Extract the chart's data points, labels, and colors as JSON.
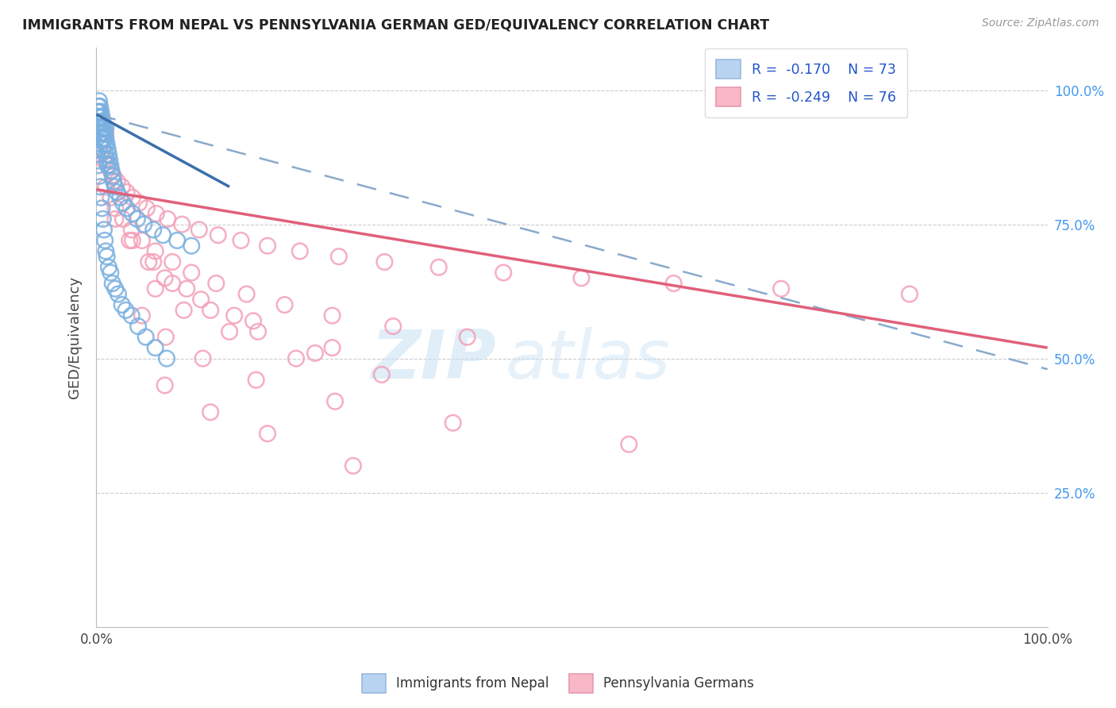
{
  "title": "IMMIGRANTS FROM NEPAL VS PENNSYLVANIA GERMAN GED/EQUIVALENCY CORRELATION CHART",
  "source": "Source: ZipAtlas.com",
  "ylabel": "GED/Equivalency",
  "legend_bottom": [
    "Immigrants from Nepal",
    "Pennsylvania Germans"
  ],
  "blue_color": "#7ab0e0",
  "pink_color": "#f4a0b8",
  "blue_line_color": "#3a6faa",
  "pink_line_color": "#e0607a",
  "dashed_line_color": "#88aacc",
  "blue_line_x0": 0.0,
  "blue_line_x1": 0.14,
  "blue_line_y0": 0.955,
  "blue_line_y1": 0.82,
  "dashed_line_x0": 0.0,
  "dashed_line_x1": 1.0,
  "dashed_line_y0": 0.955,
  "dashed_line_y1": 0.48,
  "pink_line_x0": 0.0,
  "pink_line_x1": 1.0,
  "pink_line_y0": 0.815,
  "pink_line_y1": 0.52,
  "xlim": [
    0.0,
    1.0
  ],
  "ylim": [
    0.0,
    1.08
  ],
  "ytick_values": [
    0.25,
    0.5,
    0.75,
    1.0
  ],
  "ytick_labels_right": [
    "25.0%",
    "50.0%",
    "75.0%",
    "100.0%"
  ],
  "xtick_values": [
    0.0,
    1.0
  ],
  "xtick_labels": [
    "0.0%",
    "100.0%"
  ],
  "nepal_x": [
    0.001,
    0.001,
    0.002,
    0.002,
    0.002,
    0.003,
    0.003,
    0.003,
    0.004,
    0.004,
    0.004,
    0.005,
    0.005,
    0.005,
    0.005,
    0.006,
    0.006,
    0.006,
    0.007,
    0.007,
    0.007,
    0.008,
    0.008,
    0.009,
    0.009,
    0.01,
    0.01,
    0.01,
    0.011,
    0.011,
    0.012,
    0.012,
    0.013,
    0.014,
    0.015,
    0.016,
    0.017,
    0.018,
    0.02,
    0.022,
    0.025,
    0.028,
    0.032,
    0.038,
    0.043,
    0.05,
    0.06,
    0.07,
    0.085,
    0.1,
    0.001,
    0.002,
    0.003,
    0.004,
    0.005,
    0.006,
    0.007,
    0.008,
    0.009,
    0.01,
    0.011,
    0.013,
    0.015,
    0.017,
    0.02,
    0.023,
    0.027,
    0.031,
    0.037,
    0.044,
    0.052,
    0.062,
    0.074
  ],
  "nepal_y": [
    0.96,
    0.94,
    0.97,
    0.95,
    0.93,
    0.98,
    0.96,
    0.94,
    0.97,
    0.95,
    0.92,
    0.96,
    0.94,
    0.92,
    0.9,
    0.95,
    0.93,
    0.91,
    0.94,
    0.92,
    0.89,
    0.93,
    0.91,
    0.92,
    0.9,
    0.93,
    0.91,
    0.88,
    0.9,
    0.87,
    0.89,
    0.86,
    0.88,
    0.87,
    0.86,
    0.85,
    0.84,
    0.83,
    0.82,
    0.81,
    0.8,
    0.79,
    0.78,
    0.77,
    0.76,
    0.75,
    0.74,
    0.73,
    0.72,
    0.71,
    0.88,
    0.86,
    0.84,
    0.82,
    0.8,
    0.78,
    0.76,
    0.74,
    0.72,
    0.7,
    0.69,
    0.67,
    0.66,
    0.64,
    0.63,
    0.62,
    0.6,
    0.59,
    0.58,
    0.56,
    0.54,
    0.52,
    0.5
  ],
  "penn_x": [
    0.005,
    0.008,
    0.01,
    0.012,
    0.015,
    0.018,
    0.022,
    0.027,
    0.032,
    0.038,
    0.045,
    0.053,
    0.063,
    0.075,
    0.09,
    0.108,
    0.128,
    0.152,
    0.18,
    0.214,
    0.255,
    0.303,
    0.36,
    0.428,
    0.51,
    0.607,
    0.72,
    0.855,
    0.01,
    0.015,
    0.02,
    0.028,
    0.037,
    0.048,
    0.062,
    0.08,
    0.1,
    0.126,
    0.158,
    0.198,
    0.248,
    0.312,
    0.39,
    0.02,
    0.035,
    0.055,
    0.08,
    0.12,
    0.17,
    0.23,
    0.3,
    0.038,
    0.06,
    0.095,
    0.145,
    0.072,
    0.11,
    0.165,
    0.248,
    0.062,
    0.092,
    0.14,
    0.21,
    0.048,
    0.073,
    0.112,
    0.168,
    0.251,
    0.375,
    0.56,
    0.072,
    0.12,
    0.18,
    0.27
  ],
  "penn_y": [
    0.88,
    0.87,
    0.92,
    0.86,
    0.85,
    0.84,
    0.83,
    0.82,
    0.81,
    0.8,
    0.79,
    0.78,
    0.77,
    0.76,
    0.75,
    0.74,
    0.73,
    0.72,
    0.71,
    0.7,
    0.69,
    0.68,
    0.67,
    0.66,
    0.65,
    0.64,
    0.63,
    0.62,
    0.82,
    0.8,
    0.78,
    0.76,
    0.74,
    0.72,
    0.7,
    0.68,
    0.66,
    0.64,
    0.62,
    0.6,
    0.58,
    0.56,
    0.54,
    0.76,
    0.72,
    0.68,
    0.64,
    0.59,
    0.55,
    0.51,
    0.47,
    0.72,
    0.68,
    0.63,
    0.58,
    0.65,
    0.61,
    0.57,
    0.52,
    0.63,
    0.59,
    0.55,
    0.5,
    0.58,
    0.54,
    0.5,
    0.46,
    0.42,
    0.38,
    0.34,
    0.45,
    0.4,
    0.36,
    0.3
  ]
}
